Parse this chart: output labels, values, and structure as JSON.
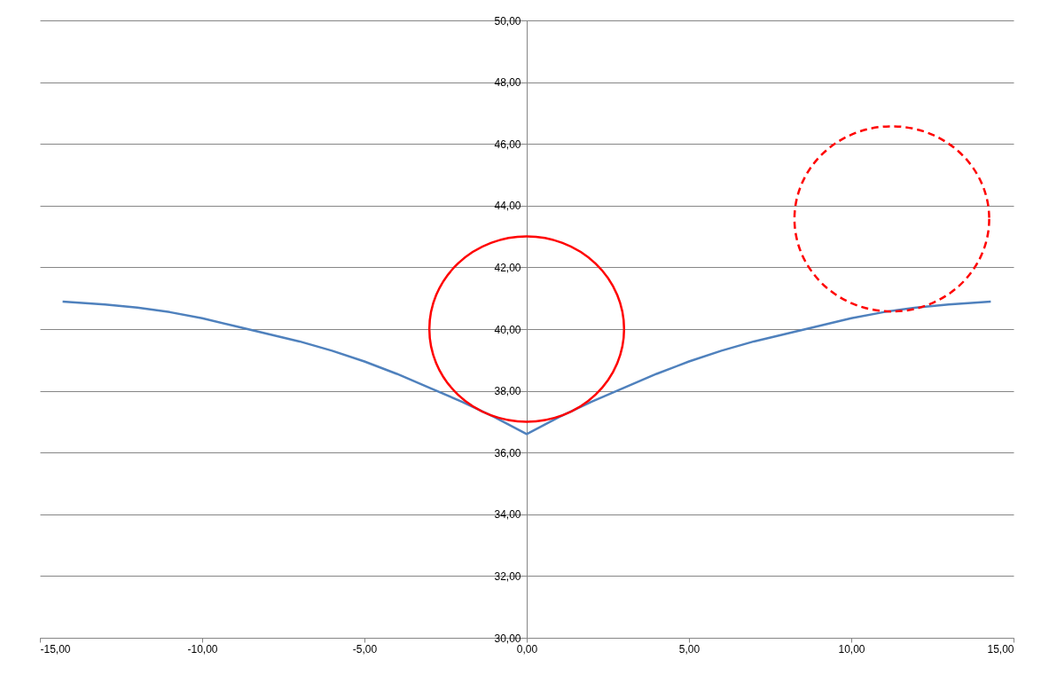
{
  "chart_data": {
    "type": "line",
    "xlim": [
      -15,
      15
    ],
    "ylim": [
      30,
      50
    ],
    "xticks": [
      {
        "value": -15,
        "label": "-15,00"
      },
      {
        "value": -10,
        "label": "-10,00"
      },
      {
        "value": -5,
        "label": "-5,00"
      },
      {
        "value": 0,
        "label": "0,00"
      },
      {
        "value": 5,
        "label": "5,00"
      },
      {
        "value": 10,
        "label": "10,00"
      },
      {
        "value": 15,
        "label": "15,00"
      }
    ],
    "yticks": [
      {
        "value": 30,
        "label": "30,00"
      },
      {
        "value": 32,
        "label": "32,00"
      },
      {
        "value": 34,
        "label": "34,00"
      },
      {
        "value": 36,
        "label": "36,00"
      },
      {
        "value": 38,
        "label": "38,00"
      },
      {
        "value": 40,
        "label": "40,00"
      },
      {
        "value": 42,
        "label": "42,00"
      },
      {
        "value": 44,
        "label": "44,00"
      },
      {
        "value": 46,
        "label": "46,00"
      },
      {
        "value": 48,
        "label": "48,00"
      },
      {
        "value": 50,
        "label": "50,00"
      }
    ],
    "grid": "y",
    "marker": "none",
    "series": [
      {
        "type": "line",
        "color": "#4f81bd",
        "line_style": "solid",
        "x": [
          -14.3,
          -13,
          -12,
          -11,
          -10,
          -9,
          -8,
          -7,
          -6,
          -5,
          -4,
          -3,
          -2,
          -1,
          0,
          1,
          2,
          3,
          4,
          5,
          6,
          7,
          8,
          9,
          10,
          11,
          12,
          13,
          14.3
        ],
        "values": [
          40.89,
          40.8,
          40.7,
          40.55,
          40.35,
          40.1,
          39.85,
          39.6,
          39.3,
          38.95,
          38.55,
          38.1,
          37.65,
          37.15,
          36.6,
          37.15,
          37.65,
          38.1,
          38.55,
          38.95,
          39.3,
          39.6,
          39.85,
          40.1,
          40.35,
          40.55,
          40.7,
          40.8,
          40.89
        ]
      }
    ]
  }
}
